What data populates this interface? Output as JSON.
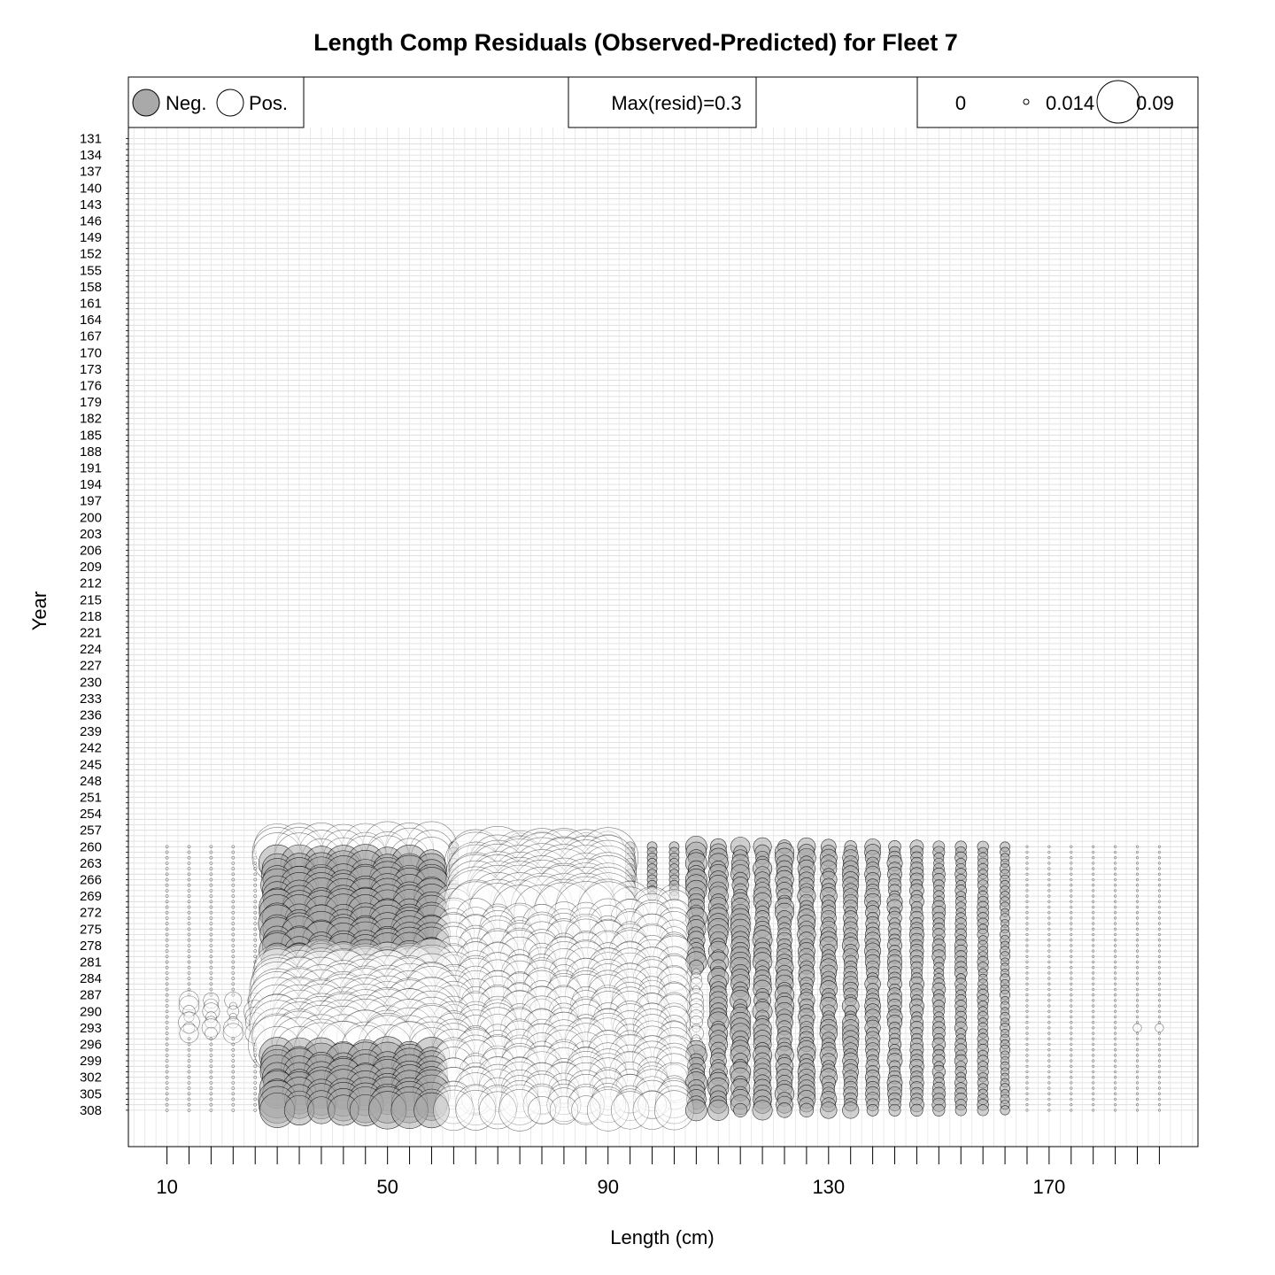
{
  "chart_data": {
    "type": "bubble",
    "title": "Length Comp Residuals (Observed-Predicted) for Fleet 7",
    "xlabel": "Length (cm)",
    "ylabel": "Year",
    "x_tick_labels": [
      "10",
      "50",
      "90",
      "130",
      "170"
    ],
    "x_minor_ticks": [
      10,
      14,
      18,
      22,
      26,
      30,
      34,
      38,
      42,
      46,
      50,
      54,
      58,
      62,
      66,
      70,
      74,
      78,
      82,
      86,
      90,
      94,
      98,
      102,
      106,
      110,
      114,
      118,
      122,
      126,
      130,
      134,
      138,
      142,
      146,
      150,
      154,
      158,
      162,
      166,
      170,
      174,
      178,
      182,
      186,
      190
    ],
    "y_tick_labels": [
      "131",
      "134",
      "137",
      "140",
      "143",
      "146",
      "149",
      "152",
      "155",
      "158",
      "161",
      "164",
      "167",
      "170",
      "173",
      "176",
      "179",
      "182",
      "185",
      "188",
      "191",
      "194",
      "197",
      "200",
      "203",
      "206",
      "209",
      "212",
      "215",
      "218",
      "221",
      "224",
      "227",
      "230",
      "233",
      "236",
      "239",
      "242",
      "245",
      "248",
      "251",
      "254",
      "257",
      "260",
      "263",
      "266",
      "269",
      "272",
      "275",
      "278",
      "281",
      "284",
      "287",
      "290",
      "293",
      "296",
      "299",
      "302",
      "305",
      "308"
    ],
    "xlim": [
      3,
      197
    ],
    "ylim": [
      131,
      314
    ],
    "grid": true,
    "length_bins": [
      10,
      14,
      18,
      22,
      26,
      30,
      34,
      38,
      42,
      46,
      50,
      54,
      58,
      62,
      66,
      70,
      74,
      78,
      82,
      86,
      90,
      94,
      98,
      102,
      106,
      110,
      114,
      118,
      122,
      126,
      130,
      134,
      138,
      142,
      146,
      150,
      154,
      158,
      162,
      166,
      170,
      174,
      178,
      182,
      186,
      190
    ],
    "year_range": [
      260,
      308
    ],
    "max_resid": 0.3,
    "fill_colors": {
      "neg": "#a9a9a9",
      "pos": "#ffffff"
    },
    "residual_profile_note": "",
    "series": [
      {
        "name": "Neg.",
        "sign": -1
      },
      {
        "name": "Pos.",
        "sign": 1
      }
    ],
    "legend": {
      "sign_items": [
        "Neg.",
        "Pos."
      ],
      "max_label": "Max(resid)=0.3",
      "size_labels": [
        "0",
        "0.014",
        "0.09"
      ],
      "size_values": [
        0,
        0.014,
        0.09
      ],
      "placement": "top"
    }
  }
}
